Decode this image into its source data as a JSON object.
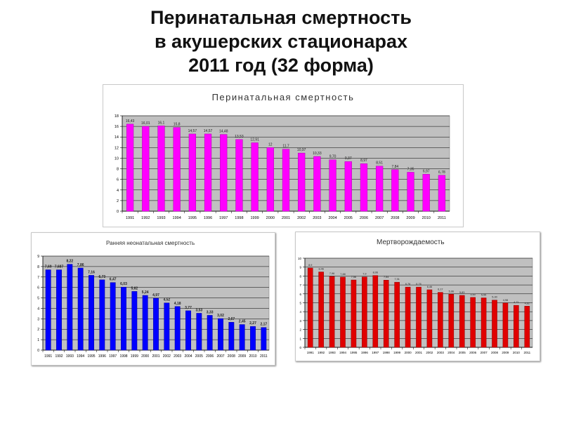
{
  "slide": {
    "title_lines": [
      "Перинатальная смертность",
      "в акушерских стационарах",
      "2011 год  (32 форма)"
    ]
  },
  "chart_data": [
    {
      "type": "bar",
      "title": "Перинатальная смертность",
      "categories": [
        "1991",
        "1992",
        "1993",
        "1994",
        "1995",
        "1996",
        "1997",
        "1998",
        "1999",
        "2000",
        "2001",
        "2002",
        "2003",
        "2004",
        "2005",
        "2006",
        "2007",
        "2008",
        "2009",
        "2010",
        "2011"
      ],
      "values": [
        16.43,
        16.01,
        16.1,
        15.8,
        14.57,
        14.57,
        14.48,
        13.53,
        12.91,
        12,
        11.7,
        10.97,
        10.33,
        9.7,
        9.37,
        8.97,
        8.51,
        7.84,
        7.35,
        6.97,
        6.78
      ],
      "labels": [
        "16,43",
        "16,01",
        "16,1",
        "15,8",
        "14,57",
        "14,57",
        "14,48",
        "13,53",
        "12,91",
        "12",
        "11,7",
        "10,97",
        "10,33",
        "9,70",
        "9,37",
        "8,97",
        "8,51",
        "7,84",
        "7,35",
        "6,97",
        "6,78"
      ],
      "ylim": [
        0,
        18
      ],
      "yticks": [
        0,
        2,
        4,
        6,
        8,
        10,
        12,
        14,
        16,
        18
      ],
      "grid": true,
      "bar_color": "#ff00ff",
      "bar_stroke": "#b000b0",
      "plot_bg": "#c0c0c0"
    },
    {
      "type": "bar",
      "title": "Ранняя неонатальная смертность",
      "categories": [
        "1991",
        "1992",
        "1993",
        "1994",
        "1995",
        "1996",
        "1997",
        "1998",
        "1999",
        "2000",
        "2001",
        "2002",
        "2003",
        "2004",
        "2005",
        "2006",
        "2007",
        "2008",
        "2009",
        "2010",
        "2011"
      ],
      "values": [
        7.69,
        7.687,
        8.22,
        7.86,
        7.16,
        6.73,
        6.47,
        6.03,
        5.62,
        5.24,
        4.97,
        4.52,
        4.18,
        3.77,
        3.53,
        3.33,
        3.02,
        2.67,
        2.45,
        2.27,
        2.17
      ],
      "labels": [
        "7,69",
        "7,687",
        "8,22",
        "7,86",
        "7,16",
        "6,73",
        "6,47",
        "6,03",
        "5,62",
        "5,24",
        "4,97",
        "4,52",
        "4,18",
        "3,77",
        "3,53",
        "3,33",
        "3,02",
        "2,67",
        "2,45",
        "2,27",
        "2,17"
      ],
      "ylim": [
        0,
        9
      ],
      "yticks": [
        0,
        1,
        2,
        3,
        4,
        5,
        6,
        7,
        8,
        9
      ],
      "grid": true,
      "bar_color": "#0000ff",
      "bar_stroke": "#0000a0",
      "plot_bg": "#c0c0c0"
    },
    {
      "type": "bar",
      "title": "Мертворождаемость",
      "categories": [
        "1991",
        "1992",
        "1993",
        "1994",
        "1995",
        "1996",
        "1997",
        "1998",
        "1999",
        "2000",
        "2001",
        "2002",
        "2003",
        "2004",
        "2005",
        "2006",
        "2007",
        "2008",
        "2009",
        "2010",
        "2011"
      ],
      "values": [
        8.9,
        8.46,
        7.96,
        7.88,
        7.56,
        7.9,
        8.06,
        7.54,
        7.31,
        6.76,
        6.76,
        6.46,
        6.17,
        5.96,
        5.83,
        5.6,
        5.55,
        5.3,
        4.98,
        4.71,
        4.62
      ],
      "labels": [
        "8,9",
        "8,46",
        "7,96",
        "7,88",
        "7,56",
        "7,9",
        "8,06",
        "7,54",
        "7,31",
        "6,76",
        "6,76",
        "6,46",
        "6,17",
        "5,96",
        "5,83",
        "5,60",
        "5,55",
        "5,30",
        "4,98",
        "4,71",
        "4,62"
      ],
      "ylim": [
        0,
        10
      ],
      "yticks": [
        0,
        1,
        2,
        3,
        4,
        5,
        6,
        7,
        8,
        9,
        10
      ],
      "grid": true,
      "bar_color": "#e00000",
      "bar_stroke": "#900000",
      "plot_bg": "#c0c0c0"
    }
  ]
}
